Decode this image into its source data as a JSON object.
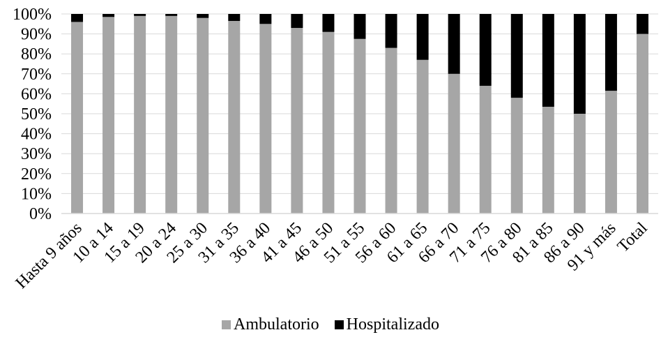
{
  "chart_data": {
    "type": "bar",
    "stacked": true,
    "percent": true,
    "categories": [
      "Hasta 9 años",
      "10 a 14",
      "15 a 19",
      "20 a 24",
      "25 a 30",
      "31 a 35",
      "36 a 40",
      "41 a 45",
      "46 a 50",
      "51 a 55",
      "56 a 60",
      "61 a 65",
      "66 a 70",
      "71 a 75",
      "76 a 80",
      "81 a 85",
      "86 a 90",
      "91 y más",
      "Total"
    ],
    "series": [
      {
        "name": "Ambulatorio",
        "color": "#a6a6a6",
        "values": [
          96,
          98.5,
          99,
          99,
          98,
          96.5,
          95,
          93,
          91,
          87.5,
          83,
          77,
          70,
          64,
          58,
          53.5,
          50,
          61.5,
          90
        ]
      },
      {
        "name": "Hospitalizado",
        "color": "#000000",
        "values": [
          4,
          1.5,
          1,
          1,
          2,
          3.5,
          5,
          7,
          9,
          12.5,
          17,
          23,
          30,
          36,
          42,
          46.5,
          50,
          38.5,
          10
        ]
      }
    ],
    "ylim": [
      0,
      100
    ],
    "yticks": [
      "0%",
      "10%",
      "20%",
      "30%",
      "40%",
      "50%",
      "60%",
      "70%",
      "80%",
      "90%",
      "100%"
    ],
    "grid": true,
    "legend_position": "bottom",
    "title": "",
    "xlabel": "",
    "ylabel": ""
  }
}
